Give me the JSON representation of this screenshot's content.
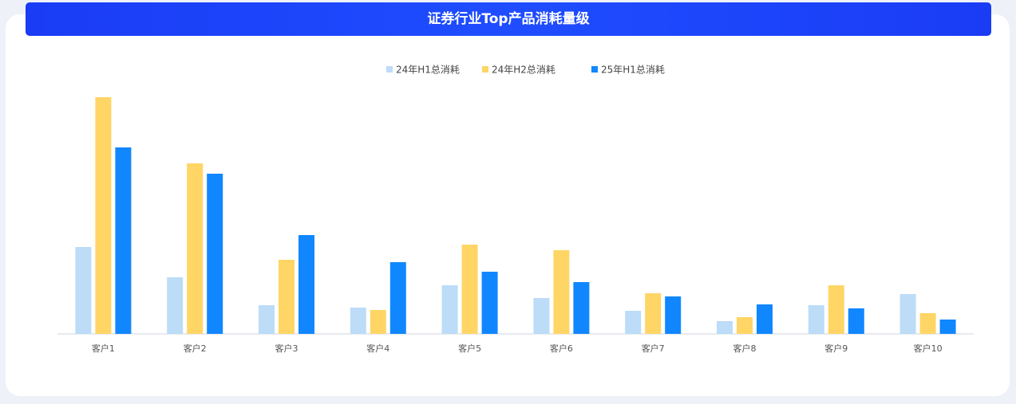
{
  "chart_data": {
    "type": "bar",
    "title": "证券行业Top产品消耗量级",
    "categories": [
      "客户1",
      "客户2",
      "客户3",
      "客户4",
      "客户5",
      "客户6",
      "客户7",
      "客户8",
      "客户9",
      "客户10"
    ],
    "series": [
      {
        "name": "24年H1总消耗",
        "color": "#bcdcf8",
        "values": [
          109,
          71,
          36,
          33,
          61,
          45,
          29,
          16,
          36,
          50
        ]
      },
      {
        "name": "24年H2总消耗",
        "color": "#ffd566",
        "values": [
          297,
          214,
          93,
          30,
          112,
          105,
          51,
          21,
          61,
          26
        ]
      },
      {
        "name": "25年H1总消耗",
        "color": "#1187ff",
        "values": [
          234,
          201,
          124,
          90,
          78,
          65,
          47,
          37,
          32,
          18
        ]
      }
    ],
    "ylim": [
      0,
      300
    ],
    "legend": "top"
  }
}
